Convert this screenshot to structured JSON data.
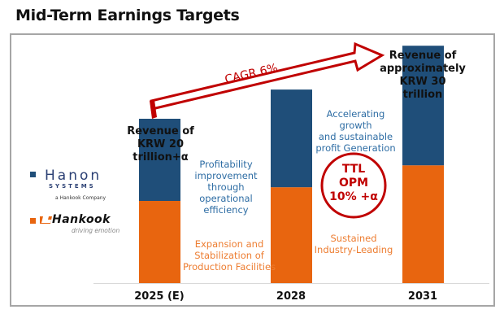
{
  "title": "Mid-Term Earnings Targets",
  "colors": {
    "hanon": "#1f4e79",
    "hankook": "#e8650f",
    "accent_red": "#c00000",
    "note_blue": "#2e6da4",
    "note_orange": "#ed7d31"
  },
  "legend": {
    "hanon": {
      "name": "Hanon Systems",
      "logo_text": "Hanon",
      "sub_text": "SYSTEMS",
      "company_text": "a Hankook Company",
      "icon": "hanon-logo"
    },
    "hankook": {
      "name": "Hankook",
      "logo_text": "Hankook",
      "sub_text": "driving emotion",
      "icon": "hankook-logo"
    }
  },
  "annotations": {
    "rev_2025": [
      "Revenue of",
      "KRW 20 trillion+α"
    ],
    "rev_2031": [
      "Revenue of",
      "approximately",
      "KRW 30 trillion"
    ],
    "cagr": "CAGR 6%",
    "blue_note_1": [
      "Profitability",
      "improvement",
      "through",
      "operational",
      "efficiency"
    ],
    "orange_note_1": [
      "Expansion and",
      "Stabilization of",
      "Production Facilities"
    ],
    "blue_note_2": [
      "Accelerating growth",
      "and sustainable",
      "profit Generation"
    ],
    "orange_note_2": [
      "Sustained",
      "Industry-Leading"
    ],
    "opm": [
      "TTL",
      "OPM",
      "10% +α"
    ]
  },
  "chart_data": {
    "type": "bar",
    "stacked": true,
    "title": "Mid-Term Earnings Targets",
    "xlabel": "",
    "ylabel": "",
    "categories": [
      "2025 (E)",
      "2028",
      "2031"
    ],
    "series": [
      {
        "name": "Hankook",
        "color": "#e8650f",
        "values": [
          9.0,
          10.5,
          12.9
        ]
      },
      {
        "name": "Hanon Systems",
        "color": "#1f4e79",
        "values": [
          9.0,
          10.7,
          13.1
        ]
      }
    ],
    "totals_label": [
      "KRW 20 trillion+α",
      "",
      "KRW 30 trillion"
    ],
    "ylim": [
      0,
      27
    ],
    "grid": false,
    "legend": "left"
  }
}
